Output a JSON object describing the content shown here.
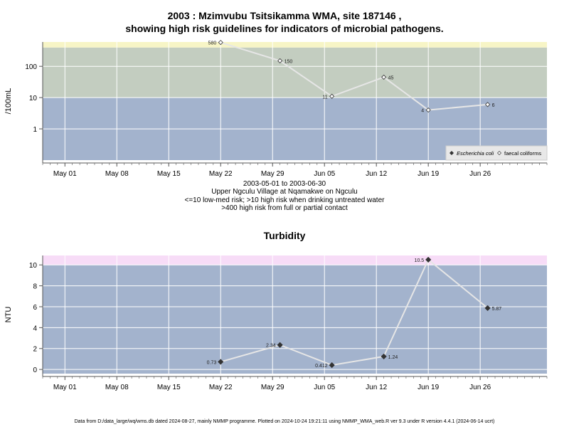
{
  "title_line1": "2003 : Mzimvubu Tsitsikamma WMA, site 187146 ,",
  "title_line2": "showing high risk guidelines for indicators of microbial pathogens.",
  "caption": {
    "line1": "2003-05-01 to 2003-06-30",
    "line2": "Upper Ngculu Village at Nqamakwe on Ngculu",
    "line3": "<=10 low-med risk; >10 high risk when drinking untreated water",
    "line4": ">400 high risk from full or partial contact"
  },
  "footer": "Data from D:/data_large/wq/wms.db dated 2024-08-27, mainly NMMP programme. Plotted on 2024-10-24 19:21:11 using NMMP_WMA_web.R ver 9.3 under R version 4.4.1 (2024-06-14 ucrt)",
  "chart_data": [
    {
      "type": "line",
      "title": "",
      "xlabel": "",
      "ylabel": "/100mL",
      "y_scale": "log",
      "xlim": [
        "2003-04-28",
        "2003-07-05"
      ],
      "ylim": [
        0.1,
        600
      ],
      "x_ticks": [
        "May 01",
        "May 08",
        "May 15",
        "May 22",
        "May 29",
        "Jun 05",
        "Jun 12",
        "Jun 19",
        "Jun 26"
      ],
      "y_ticks": [
        "1",
        "10",
        "100"
      ],
      "bands": [
        {
          "from": 0.1,
          "to": 10,
          "color": "#a3b3cd"
        },
        {
          "from": 10,
          "to": 400,
          "color": "#c3cdc0"
        },
        {
          "from": 400,
          "to": 600,
          "color": "#f7f5c6"
        }
      ],
      "legend_position": "bottom-right",
      "legend": [
        "Escherichia coli",
        "faecal coliforms"
      ],
      "series": [
        {
          "name": "faecal coliforms",
          "marker": "open-diamond",
          "points": [
            {
              "x": "2003-05-22",
              "y": 580,
              "label": "580"
            },
            {
              "x": "2003-05-30",
              "y": 150,
              "label": "150"
            },
            {
              "x": "2003-06-06",
              "y": 11,
              "label": "11"
            },
            {
              "x": "2003-06-13",
              "y": 45,
              "label": "45"
            },
            {
              "x": "2003-06-19",
              "y": 4,
              "label": "4"
            },
            {
              "x": "2003-06-27",
              "y": 6,
              "label": "6"
            }
          ]
        }
      ]
    },
    {
      "type": "line",
      "title": "Turbidity",
      "xlabel": "",
      "ylabel": "NTU",
      "xlim": [
        "2003-04-28",
        "2003-07-05"
      ],
      "ylim": [
        -0.4,
        10.9
      ],
      "x_ticks": [
        "May 01",
        "May 08",
        "May 15",
        "May 22",
        "May 29",
        "Jun 05",
        "Jun 12",
        "Jun 19",
        "Jun 26"
      ],
      "y_ticks": [
        "0",
        "2",
        "4",
        "6",
        "8",
        "10"
      ],
      "bands": [
        {
          "from": -0.4,
          "to": 10,
          "color": "#a3b3cd"
        },
        {
          "from": 10,
          "to": 10.9,
          "color": "#f7dcf7"
        }
      ],
      "series": [
        {
          "marker": "filled-diamond",
          "points": [
            {
              "x": "2003-05-22",
              "y": 0.73,
              "label": "0.73"
            },
            {
              "x": "2003-05-30",
              "y": 2.34,
              "label": "2.34"
            },
            {
              "x": "2003-06-06",
              "y": 0.412,
              "label": "0.412"
            },
            {
              "x": "2003-06-13",
              "y": 1.24,
              "label": "1.24"
            },
            {
              "x": "2003-06-19",
              "y": 10.5,
              "label": "10.5"
            },
            {
              "x": "2003-06-27",
              "y": 5.87,
              "label": "5.87"
            }
          ]
        }
      ]
    }
  ]
}
